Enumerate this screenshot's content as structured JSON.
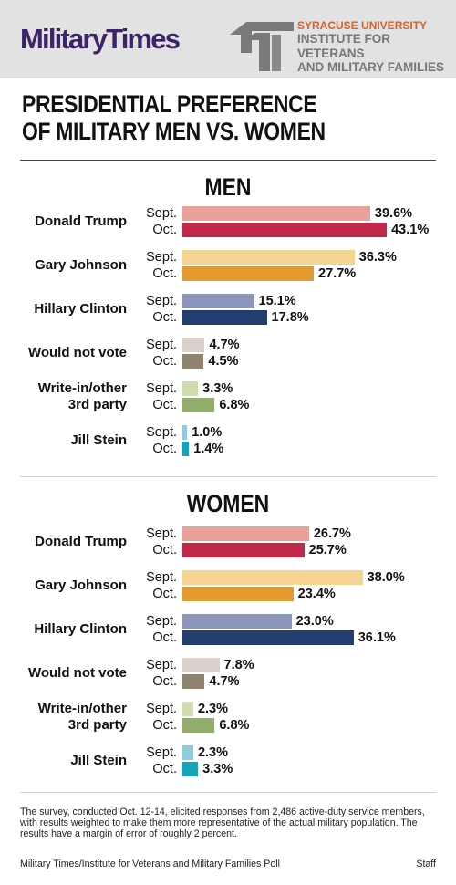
{
  "header": {
    "logo": "MilitaryTimes",
    "su_line1": "SYRACUSE UNIVERSITY",
    "su_line2": "INSTITUTE FOR VETERANS",
    "su_line3": "AND MILITARY FAMILIES"
  },
  "title_line1": "PRESIDENTIAL PREFERENCE",
  "title_line2": "OF MILITARY MEN VS. WOMEN",
  "footer": {
    "note": "The survey, conducted Oct. 12-14, elicited responses from 2,486 active-duty service members, with results weighted to make them more representative of the actual military population. The results have a margin of error of roughly 2 percent.",
    "source": "Military Times/Institute for Veterans and Military Families Poll",
    "credit": "Staff"
  },
  "colors": {
    "trump": [
      "#e8a29a",
      "#c0294a"
    ],
    "johnson": [
      "#f6d492",
      "#e59c2e"
    ],
    "clinton": [
      "#8e97bb",
      "#233d6e"
    ],
    "wouldnot": [
      "#d8d2c8",
      "#8f836f"
    ],
    "writein": [
      "#cfdcae",
      "#92ad6c"
    ],
    "stein": [
      "#8fcbe0",
      "#16a3b9"
    ]
  },
  "chart_data": [
    {
      "type": "bar",
      "title": "MEN",
      "periods": [
        "Sept.",
        "Oct."
      ],
      "categories": [
        {
          "name": "Donald Trump",
          "key": "trump",
          "values": [
            39.6,
            43.1
          ],
          "labels": [
            "39.6%",
            "43.1%"
          ]
        },
        {
          "name": "Gary Johnson",
          "key": "johnson",
          "values": [
            36.3,
            27.7
          ],
          "labels": [
            "36.3%",
            "27.7%"
          ]
        },
        {
          "name": "Hillary Clinton",
          "key": "clinton",
          "values": [
            15.1,
            17.8
          ],
          "labels": [
            "15.1%",
            "17.8%"
          ]
        },
        {
          "name": "Would not vote",
          "key": "wouldnot",
          "values": [
            4.7,
            4.5
          ],
          "labels": [
            "4.7%",
            "4.5%"
          ]
        },
        {
          "name": "Write-in/other\n3rd party",
          "key": "writein",
          "values": [
            3.3,
            6.8
          ],
          "labels": [
            "3.3%",
            "6.8%"
          ]
        },
        {
          "name": "Jill Stein",
          "key": "stein",
          "values": [
            1.0,
            1.4
          ],
          "labels": [
            "1.0%",
            "1.4%"
          ]
        }
      ]
    },
    {
      "type": "bar",
      "title": "WOMEN",
      "periods": [
        "Sept.",
        "Oct."
      ],
      "categories": [
        {
          "name": "Donald Trump",
          "key": "trump",
          "values": [
            26.7,
            25.7
          ],
          "labels": [
            "26.7%",
            "25.7%"
          ]
        },
        {
          "name": "Gary Johnson",
          "key": "johnson",
          "values": [
            38.0,
            23.4
          ],
          "labels": [
            "38.0%",
            "23.4%"
          ]
        },
        {
          "name": "Hillary Clinton",
          "key": "clinton",
          "values": [
            23.0,
            36.1
          ],
          "labels": [
            "23.0%",
            "36.1%"
          ]
        },
        {
          "name": "Would not vote",
          "key": "wouldnot",
          "values": [
            7.8,
            4.7
          ],
          "labels": [
            "7.8%",
            "4.7%"
          ]
        },
        {
          "name": "Write-in/other\n3rd party",
          "key": "writein",
          "values": [
            2.3,
            6.8
          ],
          "labels": [
            "2.3%",
            "6.8%"
          ]
        },
        {
          "name": "Jill Stein",
          "key": "stein",
          "values": [
            2.3,
            3.3
          ],
          "labels": [
            "2.3%",
            "3.3%"
          ]
        }
      ]
    }
  ]
}
